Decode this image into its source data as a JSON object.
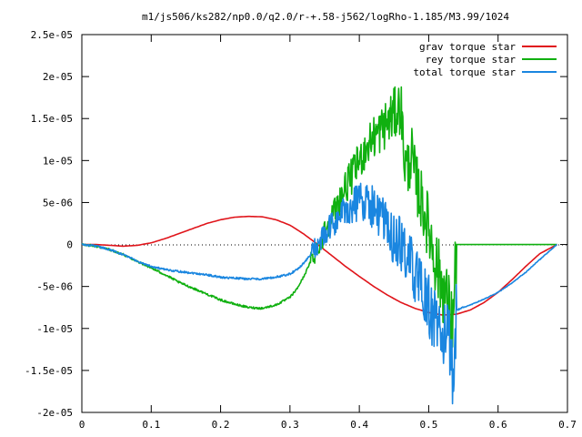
{
  "chart_data": {
    "type": "line",
    "title": "m1/js506/ks282/np0.0/q2.0/r-+.58-j562/logRho-1.185/M3.99/1024",
    "xlabel": "",
    "ylabel": "",
    "xlim": [
      0,
      0.7
    ],
    "ylim": [
      -2e-05,
      2.5e-05
    ],
    "grid": false,
    "legend_position": "top-right",
    "x_ticks": [
      {
        "value": 0,
        "label": "0"
      },
      {
        "value": 0.1,
        "label": "0.1"
      },
      {
        "value": 0.2,
        "label": "0.2"
      },
      {
        "value": 0.3,
        "label": "0.3"
      },
      {
        "value": 0.4,
        "label": "0.4"
      },
      {
        "value": 0.5,
        "label": "0.5"
      },
      {
        "value": 0.6,
        "label": "0.6"
      },
      {
        "value": 0.7,
        "label": "0.7"
      }
    ],
    "y_ticks": [
      {
        "value": 2.5e-05,
        "label": "2.5e-05"
      },
      {
        "value": 2e-05,
        "label": "2e-05"
      },
      {
        "value": 1.5e-05,
        "label": "1.5e-05"
      },
      {
        "value": 1e-05,
        "label": "1e-05"
      },
      {
        "value": 5e-06,
        "label": "5e-06"
      },
      {
        "value": 0,
        "label": "0"
      },
      {
        "value": -5e-06,
        "label": "-5e-06"
      },
      {
        "value": -1e-05,
        "label": "-1e-05"
      },
      {
        "value": -1.5e-05,
        "label": "-1.5e-05"
      },
      {
        "value": -2e-05,
        "label": "-2e-05"
      }
    ],
    "series": [
      {
        "name": "grav torque star",
        "color": "#e0141a",
        "x": [
          0,
          0.02,
          0.04,
          0.06,
          0.08,
          0.1,
          0.12,
          0.14,
          0.16,
          0.18,
          0.2,
          0.22,
          0.24,
          0.26,
          0.28,
          0.3,
          0.32,
          0.34,
          0.36,
          0.38,
          0.4,
          0.42,
          0.44,
          0.46,
          0.48,
          0.5,
          0.52,
          0.54,
          0.56,
          0.58,
          0.6,
          0.62,
          0.64,
          0.66,
          0.685
        ],
        "y": [
          0,
          0,
          -1e-07,
          -2e-07,
          -1e-07,
          2e-07,
          7e-07,
          1.3e-06,
          1.9e-06,
          2.5e-06,
          2.95e-06,
          3.25e-06,
          3.35e-06,
          3.3e-06,
          2.95e-06,
          2.3e-06,
          1.25e-06,
          0,
          -1.3e-06,
          -2.6e-06,
          -3.8e-06,
          -4.95e-06,
          -6e-06,
          -6.9e-06,
          -7.6e-06,
          -8.1e-06,
          -8.4e-06,
          -8.3e-06,
          -7.8e-06,
          -6.9e-06,
          -5.7e-06,
          -4.2e-06,
          -2.6e-06,
          -1.1e-06,
          0
        ]
      },
      {
        "name": "rey torque star",
        "color": "#10b010",
        "x": [
          0,
          0.02,
          0.04,
          0.06,
          0.08,
          0.1,
          0.12,
          0.14,
          0.16,
          0.18,
          0.2,
          0.22,
          0.24,
          0.26,
          0.28,
          0.3,
          0.31,
          0.32,
          0.33,
          0.34,
          0.35,
          0.36,
          0.37,
          0.38,
          0.39,
          0.4,
          0.41,
          0.42,
          0.43,
          0.44,
          0.45,
          0.46,
          0.465,
          0.47,
          0.475,
          0.48,
          0.49,
          0.5,
          0.51,
          0.52,
          0.53,
          0.535,
          0.54,
          0.55,
          0.6,
          0.65,
          0.685
        ],
        "y": [
          0,
          -2e-07,
          -6e-07,
          -1.2e-06,
          -2e-06,
          -2.8e-06,
          -3.6e-06,
          -4.5e-06,
          -5.2e-06,
          -5.9e-06,
          -6.6e-06,
          -7.1e-06,
          -7.5e-06,
          -7.6e-06,
          -7.2e-06,
          -6.3e-06,
          -5.3e-06,
          -3.8e-06,
          -2e-06,
          -3e-07,
          1.5e-06,
          3.2e-06,
          5e-06,
          6.8e-06,
          8.3e-06,
          1e-05,
          1.15e-05,
          1.28e-05,
          1.35e-05,
          1.45e-05,
          1.55e-05,
          1.65e-05,
          1e-05,
          9e-06,
          1.1e-05,
          8e-06,
          5e-06,
          2e-06,
          -2e-06,
          -5e-06,
          -8e-06,
          -9.5e-06,
          0,
          0,
          0,
          0,
          0
        ]
      },
      {
        "name": "total torque star",
        "color": "#1a86e0",
        "x": [
          0,
          0.02,
          0.04,
          0.06,
          0.08,
          0.1,
          0.12,
          0.14,
          0.16,
          0.18,
          0.2,
          0.22,
          0.24,
          0.26,
          0.28,
          0.3,
          0.31,
          0.32,
          0.33,
          0.34,
          0.35,
          0.36,
          0.37,
          0.38,
          0.39,
          0.4,
          0.41,
          0.42,
          0.43,
          0.44,
          0.45,
          0.46,
          0.47,
          0.48,
          0.49,
          0.5,
          0.51,
          0.52,
          0.53,
          0.535,
          0.54,
          0.56,
          0.58,
          0.6,
          0.62,
          0.64,
          0.66,
          0.685
        ],
        "y": [
          0,
          -2e-07,
          -6e-07,
          -1.2e-06,
          -2e-06,
          -2.6e-06,
          -3e-06,
          -3.2e-06,
          -3.4e-06,
          -3.6e-06,
          -3.9e-06,
          -4e-06,
          -4.1e-06,
          -4.1e-06,
          -3.9e-06,
          -3.5e-06,
          -3e-06,
          -2.2e-06,
          -1.2e-06,
          0,
          1e-06,
          2.2e-06,
          3.2e-06,
          4e-06,
          4.7e-06,
          5.2e-06,
          5.2e-06,
          4.5e-06,
          3.2e-06,
          2e-06,
          5e-07,
          0,
          -1.5e-06,
          -3.5e-06,
          -5.5e-06,
          -7.5e-06,
          -9e-06,
          -1.05e-05,
          -1.2e-05,
          -1.55e-05,
          -7.8e-06,
          -7.2e-06,
          -6.5e-06,
          -5.7e-06,
          -4.6e-06,
          -3.3e-06,
          -1.8e-06,
          0
        ]
      }
    ]
  }
}
